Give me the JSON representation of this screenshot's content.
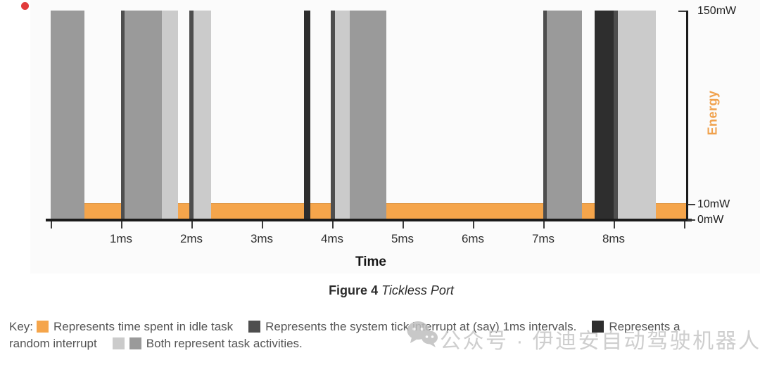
{
  "figure_caption": {
    "prefix": "Figure 4",
    "title": "Tickless Port"
  },
  "watermark": {
    "icon": "wechat-icon",
    "text": "公众号 · 伊迪安自动驾驶机器人",
    "color": "#c6c6c6"
  },
  "indicator": {
    "color": "#e23b3b"
  },
  "palette": {
    "idle": "#F5A54B",
    "idle_edge": "#E0953F",
    "tick": "#4E4E4E",
    "random": "#2E2E2E",
    "task_med": "#9A9A9A",
    "task_light": "#CBCBCB",
    "axis": "#1B1B1B",
    "energy_label": "#F0A14C"
  },
  "chart_data": {
    "type": "bar",
    "title": "Tickless Port",
    "xlabel": "Time",
    "ylabel": "Energy",
    "x_unit": "ms",
    "y_unit": "mW",
    "xlim_ms": [
      0,
      9.03
    ],
    "ylim_mW": [
      0,
      150
    ],
    "grid": false,
    "legend_position": "bottom",
    "x_tick_labels": [
      "1ms",
      "2ms",
      "3ms",
      "4ms",
      "5ms",
      "6ms",
      "7ms",
      "8ms"
    ],
    "y_axis_labels": [
      "150mW",
      "10mW",
      "0mW"
    ],
    "y_axis_tick_values_mW": [
      150,
      10,
      0
    ],
    "series": [
      {
        "name": "idle task",
        "kind": "idle",
        "power_mW": 10,
        "intervals_ms": [
          [
            0.48,
            1.0
          ],
          [
            1.81,
            1.97
          ],
          [
            2.28,
            3.6
          ],
          [
            3.69,
            3.98
          ],
          [
            4.77,
            7.0
          ],
          [
            7.55,
            7.73
          ],
          [
            8.6,
            9.03
          ]
        ]
      },
      {
        "name": "system tick interrupt",
        "kind": "tick",
        "power_mW": 150,
        "intervals_ms": [
          [
            1.0,
            1.05
          ],
          [
            1.97,
            2.03
          ],
          [
            3.98,
            4.04
          ],
          [
            7.0,
            7.05
          ],
          [
            8.0,
            8.06
          ]
        ]
      },
      {
        "name": "random interrupt",
        "kind": "random",
        "power_mW": 150,
        "intervals_ms": [
          [
            3.6,
            3.69
          ],
          [
            7.73,
            8.0
          ]
        ]
      },
      {
        "name": "task activity (medium gray)",
        "kind": "task_med",
        "power_mW": 150,
        "intervals_ms": [
          [
            0.0,
            0.48
          ],
          [
            1.05,
            1.58
          ],
          [
            4.25,
            4.77
          ],
          [
            7.05,
            7.55
          ]
        ]
      },
      {
        "name": "task activity (light gray)",
        "kind": "task_light",
        "power_mW": 150,
        "intervals_ms": [
          [
            1.58,
            1.81
          ],
          [
            2.03,
            2.28
          ],
          [
            4.04,
            4.25
          ],
          [
            8.06,
            8.6
          ]
        ]
      }
    ]
  },
  "legend": {
    "lines": [
      [
        {
          "t": "text",
          "v": "Key:"
        },
        {
          "t": "swatch",
          "k": "idle"
        },
        {
          "t": "text",
          "v": "Represents time spent in idle task"
        },
        {
          "t": "swatch",
          "k": "tick",
          "gap": true
        },
        {
          "t": "text",
          "v": "Represents the system tick interrupt at (say) 1ms intervals."
        },
        {
          "t": "swatch",
          "k": "random",
          "gap": true
        },
        {
          "t": "text",
          "v": "Represents a"
        }
      ],
      [
        {
          "t": "text",
          "v": "random interrupt"
        },
        {
          "t": "swatch",
          "k": "task_light",
          "gap": true
        },
        {
          "t": "swatch",
          "k": "task_med",
          "tight": true
        },
        {
          "t": "text",
          "v": "Both represent task activities."
        }
      ]
    ]
  }
}
